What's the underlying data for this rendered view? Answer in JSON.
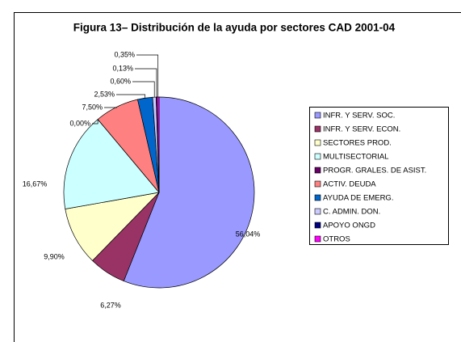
{
  "chart_data": {
    "type": "pie",
    "title": "Figura 13– Distribución de la ayuda por sectores CAD 2001-04",
    "categories": [
      "INFR. Y SERV. SOC.",
      "INFR. Y SERV. ECON.",
      "SECTORES PROD.",
      "MULTISECTORIAL",
      "PROGR. GRALES. DE ASIST.",
      "ACTIV. DEUDA",
      "AYUDA DE EMERG.",
      "C. ADMIN. DON.",
      "APOYO ONGD",
      "OTROS"
    ],
    "values": [
      56.04,
      6.27,
      9.9,
      16.67,
      0.0,
      7.5,
      2.53,
      0.6,
      0.13,
      0.35
    ],
    "value_labels": [
      "56,04%",
      "6,27%",
      "9,90%",
      "16,67%",
      "0,00%",
      "7,50%",
      "2,53%",
      "0,60%",
      "0,13%",
      "0,35%"
    ],
    "colors": [
      "#9999ff",
      "#993366",
      "#ffffcc",
      "#ccffff",
      "#660066",
      "#ff8080",
      "#0066cc",
      "#ccccff",
      "#000080",
      "#ff00ff"
    ],
    "legend": "right"
  }
}
